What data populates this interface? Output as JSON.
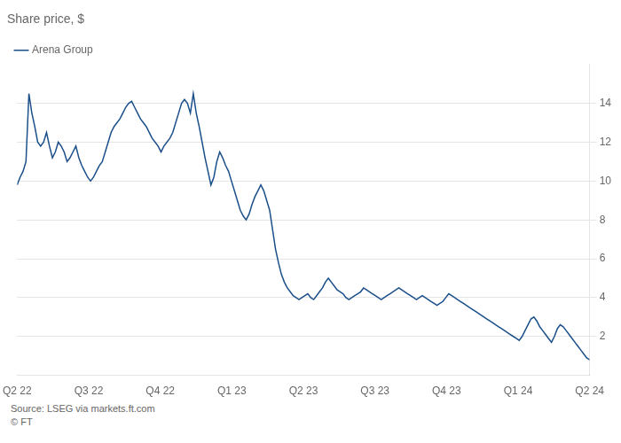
{
  "chart_data": {
    "type": "line",
    "title": "Share price, $",
    "x": [
      0,
      0.041,
      0.0821,
      0.1231,
      0.1641,
      0.2051,
      0.2462,
      0.2872,
      0.3282,
      0.3692,
      0.4103,
      0.4513,
      0.4923,
      0.5333,
      0.5744,
      0.6154,
      0.6564,
      0.6974,
      0.7385,
      0.7795,
      0.8205,
      0.8615,
      0.9026,
      0.9436,
      0.9846,
      1.0256,
      1.0667,
      1.1077,
      1.1487,
      1.1897,
      1.2308,
      1.2718,
      1.3128,
      1.3538,
      1.3949,
      1.4359,
      1.4769,
      1.5179,
      1.559,
      1.6,
      1.641,
      1.6821,
      1.7231,
      1.7641,
      1.8051,
      1.8462,
      1.8872,
      1.9282,
      1.9692,
      2.0103,
      2.0513,
      2.0923,
      2.1333,
      2.1744,
      2.2154,
      2.2564,
      2.2974,
      2.3385,
      2.3795,
      2.4205,
      2.4615,
      2.5026,
      2.5436,
      2.5846,
      2.6256,
      2.6667,
      2.7077,
      2.7487,
      2.7897,
      2.8308,
      2.8718,
      2.9128,
      2.9538,
      2.9949,
      3.0359,
      3.0769,
      3.1179,
      3.159,
      3.2,
      3.241,
      3.2821,
      3.3231,
      3.3641,
      3.4051,
      3.4462,
      3.4872,
      3.5282,
      3.5692,
      3.6103,
      3.6513,
      3.6923,
      3.7333,
      3.7744,
      3.8154,
      3.8564,
      3.8974,
      3.9385,
      3.9795,
      4.0205,
      4.0615,
      4.1026,
      4.1436,
      4.1846,
      4.2256,
      4.2667,
      4.3077,
      4.3487,
      4.3897,
      4.4308,
      4.4718,
      4.5128,
      4.5538,
      4.5949,
      4.6359,
      4.6769,
      4.7179,
      4.759,
      4.8,
      4.841,
      4.8821,
      4.9231,
      4.9641,
      5.0051,
      5.0462,
      5.0872,
      5.1282,
      5.1692,
      5.2103,
      5.2513,
      5.2923,
      5.3333,
      5.3744,
      5.4154,
      5.4564,
      5.4974,
      5.5385,
      5.5795,
      5.6205,
      5.6615,
      5.7026,
      5.7436,
      5.7846,
      5.8256,
      5.8667,
      5.9077,
      5.9487,
      5.9897,
      6.0308,
      6.0718,
      6.1128,
      6.1538,
      6.1949,
      6.2359,
      6.2769,
      6.3179,
      6.359,
      6.4,
      6.441,
      6.4821,
      6.5231,
      6.5641,
      6.6051,
      6.6462,
      6.6872,
      6.7282,
      6.7692,
      6.8103,
      6.8513,
      6.8923,
      6.9333,
      6.9744,
      7.0154,
      7.0564,
      7.0974,
      7.1385,
      7.1795,
      7.2205,
      7.2615,
      7.3026,
      7.3436,
      7.3846,
      7.4256,
      7.4667,
      7.5077,
      7.5487,
      7.5897,
      7.6308,
      7.6718,
      7.7128,
      7.7538,
      7.7949,
      7.8359,
      7.8769,
      7.9179,
      7.959,
      8
    ],
    "series": [
      {
        "name": "Arena Group",
        "color": "#1a4f8a",
        "values": [
          9.8,
          10.2,
          10.5,
          11.0,
          14.5,
          13.5,
          12.8,
          12.0,
          11.8,
          12.0,
          12.5,
          11.8,
          11.2,
          11.5,
          12.0,
          11.8,
          11.5,
          11.0,
          11.2,
          11.5,
          11.8,
          11.2,
          10.8,
          10.5,
          10.2,
          10.0,
          10.2,
          10.5,
          10.8,
          11.0,
          11.5,
          12.0,
          12.5,
          12.8,
          13.0,
          13.2,
          13.5,
          13.8,
          14.0,
          14.1,
          13.8,
          13.5,
          13.2,
          13.0,
          12.8,
          12.5,
          12.2,
          12.0,
          11.8,
          11.5,
          11.8,
          12.0,
          12.2,
          12.5,
          13.0,
          13.5,
          14.0,
          14.2,
          14.0,
          13.5,
          14.5,
          13.5,
          12.8,
          12.0,
          11.2,
          10.5,
          9.8,
          10.2,
          11.0,
          11.5,
          11.2,
          10.8,
          10.5,
          10.0,
          9.5,
          9.0,
          8.5,
          8.2,
          8.0,
          8.3,
          8.8,
          9.2,
          9.5,
          9.8,
          9.5,
          9.0,
          8.5,
          7.5,
          6.5,
          5.8,
          5.2,
          4.8,
          4.5,
          4.3,
          4.1,
          4.0,
          3.9,
          4.0,
          4.1,
          4.2,
          4.0,
          3.9,
          4.1,
          4.3,
          4.5,
          4.8,
          5.0,
          4.8,
          4.6,
          4.4,
          4.3,
          4.2,
          4.0,
          3.9,
          4.0,
          4.1,
          4.2,
          4.3,
          4.5,
          4.4,
          4.3,
          4.2,
          4.1,
          4.0,
          3.9,
          4.0,
          4.1,
          4.2,
          4.3,
          4.4,
          4.5,
          4.4,
          4.3,
          4.2,
          4.1,
          4.0,
          3.9,
          4.0,
          4.1,
          4.0,
          3.9,
          3.8,
          3.7,
          3.6,
          3.7,
          3.8,
          4.0,
          4.2,
          4.1,
          4.0,
          3.9,
          3.8,
          3.7,
          3.6,
          3.5,
          3.4,
          3.3,
          3.2,
          3.1,
          3.0,
          2.9,
          2.8,
          2.7,
          2.6,
          2.5,
          2.4,
          2.3,
          2.2,
          2.1,
          2.0,
          1.9,
          1.8,
          2.0,
          2.3,
          2.6,
          2.9,
          3.0,
          2.8,
          2.5,
          2.3,
          2.1,
          1.9,
          1.7,
          2.0,
          2.4,
          2.6,
          2.5,
          2.3,
          2.1,
          1.9,
          1.7,
          1.5,
          1.3,
          1.1,
          0.9,
          0.8
        ]
      }
    ],
    "xlim": [
      0,
      8
    ],
    "xticks": [
      {
        "value": 0,
        "label": "Q2 22"
      },
      {
        "value": 1,
        "label": "Q3 22"
      },
      {
        "value": 2,
        "label": "Q4 22"
      },
      {
        "value": 3,
        "label": "Q1 23"
      },
      {
        "value": 4,
        "label": "Q2 23"
      },
      {
        "value": 5,
        "label": "Q3 23"
      },
      {
        "value": 6,
        "label": "Q4 23"
      },
      {
        "value": 7,
        "label": "Q1 24"
      },
      {
        "value": 8,
        "label": "Q2 24"
      }
    ],
    "ylim": [
      0,
      16
    ],
    "yticks": [
      2,
      4,
      6,
      8,
      10,
      12,
      14
    ],
    "grid": "y",
    "legend": "upper left",
    "annotations": [
      "Source: LSEG via markets.ft.com",
      "© FT"
    ]
  }
}
